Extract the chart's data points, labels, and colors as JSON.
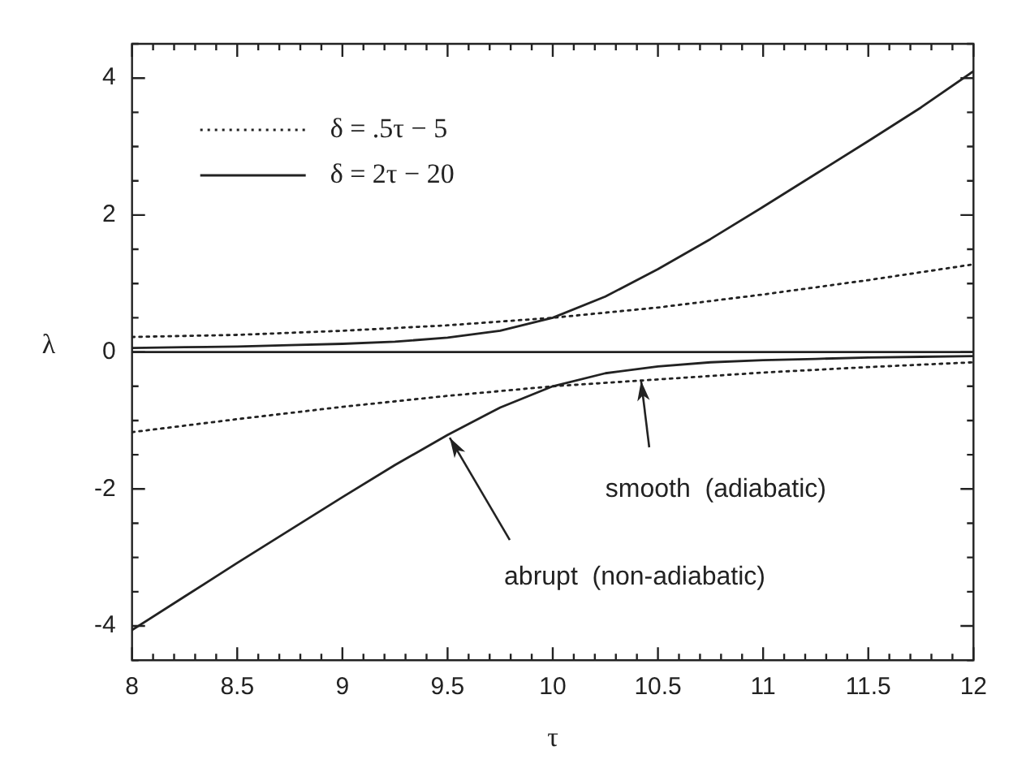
{
  "chart_data": {
    "type": "line",
    "xlabel": "τ",
    "ylabel": "λ",
    "xlim": [
      8,
      12
    ],
    "ylim": [
      -4.5,
      4.5
    ],
    "xticks": [
      8,
      {
        "value": 8.1,
        "label": null
      },
      {
        "value": 8.2,
        "label": null
      },
      {
        "value": 8.3,
        "label": null
      },
      {
        "value": 8.4,
        "label": null
      },
      8.5,
      {
        "value": 8.6,
        "label": null
      },
      {
        "value": 8.7,
        "label": null
      },
      {
        "value": 8.8,
        "label": null
      },
      {
        "value": 8.9,
        "label": null
      },
      9,
      {
        "value": 9.1,
        "label": null
      },
      {
        "value": 9.2,
        "label": null
      },
      {
        "value": 9.3,
        "label": null
      },
      {
        "value": 9.4,
        "label": null
      },
      9.5,
      {
        "value": 9.6,
        "label": null
      },
      {
        "value": 9.7,
        "label": null
      },
      {
        "value": 9.8,
        "label": null
      },
      {
        "value": 9.9,
        "label": null
      },
      10,
      {
        "value": 10.1,
        "label": null
      },
      {
        "value": 10.2,
        "label": null
      },
      {
        "value": 10.3,
        "label": null
      },
      {
        "value": 10.4,
        "label": null
      },
      10.5,
      {
        "value": 10.6,
        "label": null
      },
      {
        "value": 10.7,
        "label": null
      },
      {
        "value": 10.8,
        "label": null
      },
      {
        "value": 10.9,
        "label": null
      },
      11,
      {
        "value": 11.1,
        "label": null
      },
      {
        "value": 11.2,
        "label": null
      },
      {
        "value": 11.3,
        "label": null
      },
      {
        "value": 11.4,
        "label": null
      },
      11.5,
      {
        "value": 11.6,
        "label": null
      },
      {
        "value": 11.7,
        "label": null
      },
      {
        "value": 11.8,
        "label": null
      },
      {
        "value": 11.9,
        "label": null
      },
      12
    ],
    "yticks": [
      {
        "value": -4.5,
        "label": null
      },
      -4,
      {
        "value": -3.5,
        "label": null
      },
      {
        "value": -3,
        "label": null
      },
      {
        "value": -2.5,
        "label": null
      },
      -2,
      {
        "value": -1.5,
        "label": null
      },
      {
        "value": -1,
        "label": null
      },
      {
        "value": -0.5,
        "label": null
      },
      0,
      {
        "value": 0.5,
        "label": null
      },
      {
        "value": 1,
        "label": null
      },
      {
        "value": 1.5,
        "label": null
      },
      2,
      {
        "value": 2.5,
        "label": null
      },
      {
        "value": 3,
        "label": null
      },
      {
        "value": 3.5,
        "label": null
      },
      4,
      {
        "value": 4.5,
        "label": null
      }
    ],
    "grid": false,
    "legend": "top left",
    "marker": "none",
    "series": [
      {
        "name": "δ = .5τ − 5",
        "color": "#222222",
        "line_style": "dotted",
        "x": [
          8,
          8.5,
          9,
          9.5,
          10,
          10.5,
          11,
          11.5,
          12
        ],
        "values": [
          0.22,
          0.25,
          0.31,
          0.39,
          0.5,
          0.65,
          0.84,
          1.05,
          1.28
        ]
      },
      {
        "color": "#222222",
        "line_style": "dotted",
        "x": [
          8,
          8.5,
          9,
          9.5,
          10,
          10.5,
          11,
          11.5,
          12
        ],
        "values": [
          -1.17,
          -0.98,
          -0.8,
          -0.64,
          -0.5,
          -0.4,
          -0.3,
          -0.22,
          -0.15
        ]
      },
      {
        "name": "δ = 2τ − 20",
        "color": "#222222",
        "line_style": "solid",
        "x": [
          8,
          8.25,
          8.5,
          8.75,
          9,
          9.25,
          9.5,
          9.75,
          10,
          10.25,
          10.5,
          10.75,
          11,
          11.25,
          11.5,
          11.75,
          12
        ],
        "values": [
          0.06,
          0.07,
          0.08,
          0.1,
          0.12,
          0.15,
          0.21,
          0.31,
          0.5,
          0.81,
          1.21,
          1.65,
          2.12,
          2.6,
          3.08,
          3.57,
          4.1
        ]
      },
      {
        "color": "#222222",
        "line_style": "solid",
        "x": [
          8,
          8.25,
          8.5,
          8.75,
          9,
          9.25,
          9.5,
          9.75,
          10,
          10.25,
          10.5,
          10.75,
          11,
          11.25,
          11.5,
          11.75,
          12
        ],
        "values": [
          -4.06,
          -3.57,
          -3.08,
          -2.6,
          -2.12,
          -1.65,
          -1.21,
          -0.81,
          -0.5,
          -0.31,
          -0.21,
          -0.15,
          -0.12,
          -0.1,
          -0.08,
          -0.07,
          -0.06
        ]
      }
    ],
    "ref_lines": [
      {
        "axis": "y",
        "value": 0,
        "color": "#222222",
        "line_style": "solid"
      }
    ],
    "annotations": [
      {
        "text": "smooth  (adiabatic)",
        "x": 10.42,
        "y": -0.42
      },
      {
        "text": "abrupt  (non-adiabatic)",
        "x": 9.51,
        "y": -1.25
      }
    ]
  }
}
